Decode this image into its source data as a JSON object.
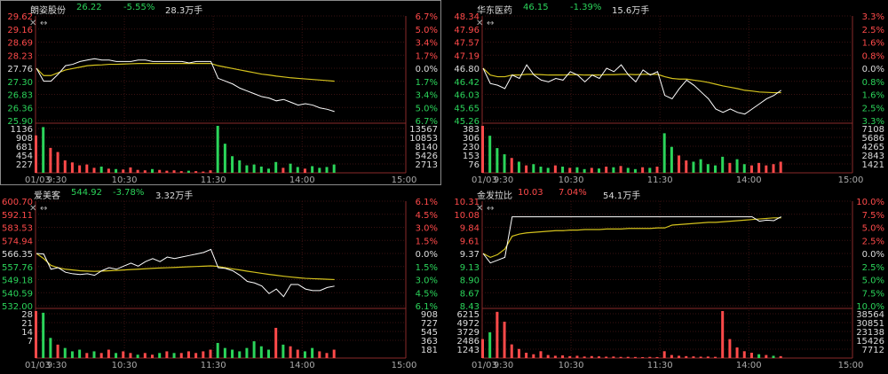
{
  "colors": {
    "up": "#ff4a4a",
    "down": "#2bd45a",
    "neutral": "#dddddd",
    "price_line": "#ffffff",
    "avg_line": "#d4c21d",
    "grid": "#3a1212",
    "axis_text": "#aaaaaa"
  },
  "time_axis": [
    "01/03",
    "9:30",
    "10:30",
    "11:30",
    "14:00",
    "15:00"
  ],
  "panels": [
    {
      "name": "朗姿股份",
      "price": "26.22",
      "change_pct": "-5.55%",
      "volume": "28.3万手",
      "price_ticks": [
        "29.62",
        "29.16",
        "28.69",
        "28.23",
        "27.76",
        "27.30",
        "26.83",
        "26.36",
        "25.90"
      ],
      "pct_ticks": [
        "6.7%",
        "5.0%",
        "3.4%",
        "1.7%",
        "0.0%",
        "1.7%",
        "3.4%",
        "5.0%",
        "6.7%"
      ],
      "vol_ticks": [
        "1136",
        "908",
        "681",
        "454",
        "227"
      ],
      "vol_ticks_right": [
        "13567",
        "10853",
        "8140",
        "5426",
        "2713"
      ],
      "controls": {
        "close": "✕",
        "expand": "↔"
      }
    },
    {
      "name": "华东医药",
      "price": "46.15",
      "change_pct": "-1.39%",
      "volume": "15.6万手",
      "price_ticks": [
        "48.34",
        "47.96",
        "47.57",
        "47.19",
        "46.80",
        "46.42",
        "46.03",
        "45.65",
        "45.26"
      ],
      "pct_ticks": [
        "3.3%",
        "2.5%",
        "1.6%",
        "0.8%",
        "0.0%",
        "0.8%",
        "1.6%",
        "2.5%",
        "3.3%"
      ],
      "vol_ticks": [
        "383",
        "306",
        "230",
        "153",
        "76"
      ],
      "vol_ticks_right": [
        "7108",
        "5686",
        "4265",
        "2843",
        "1421"
      ],
      "controls": {
        "close": "✕",
        "expand": "↔"
      }
    },
    {
      "name": "爱美客",
      "price": "544.92",
      "change_pct": "-3.78%",
      "volume": "3.32万手",
      "price_ticks": [
        "600.70",
        "592.11",
        "583.53",
        "574.94",
        "566.35",
        "557.76",
        "549.18",
        "540.59",
        "532.00"
      ],
      "pct_ticks": [
        "6.1%",
        "4.5%",
        "3.0%",
        "1.5%",
        "0.0%",
        "1.5%",
        "3.0%",
        "4.5%",
        "6.1%"
      ],
      "vol_ticks": [
        "28",
        "21",
        "14",
        "7"
      ],
      "vol_ticks_right": [
        "908",
        "727",
        "545",
        "363",
        "181"
      ],
      "controls": {
        "close": "✕",
        "expand": "↔"
      }
    },
    {
      "name": "金发拉比",
      "price": "10.03",
      "change_pct": "7.04%",
      "volume": "54.1万手",
      "price_ticks": [
        "10.31",
        "10.08",
        "9.84",
        "9.61",
        "9.37",
        "9.13",
        "8.90",
        "8.67",
        "8.43"
      ],
      "pct_ticks": [
        "10.0%",
        "7.5%",
        "5.0%",
        "2.5%",
        "0.0%",
        "2.5%",
        "5.0%",
        "7.5%",
        "10.0%"
      ],
      "vol_ticks": [
        "6215",
        "4972",
        "3729",
        "2486",
        "1243"
      ],
      "vol_ticks_right": [
        "38564",
        "30851",
        "23138",
        "15426",
        "7712"
      ],
      "controls": {
        "close": "✕",
        "expand": "↔"
      }
    }
  ],
  "chart_data": [
    {
      "type": "line",
      "title": "朗姿股份",
      "y_range": [
        25.9,
        29.62
      ],
      "prev_close": 27.76,
      "series": [
        {
          "name": "",
          "values": [
            27.76,
            27.3,
            27.3,
            27.55,
            27.85,
            27.9,
            28.0,
            28.05,
            28.1,
            28.05,
            28.05,
            28.0,
            28.0,
            28.0,
            28.05,
            28.05,
            28.0,
            28.0,
            28.0,
            28.0,
            28.0,
            27.95,
            28.0,
            28.0,
            28.0,
            27.4,
            27.3,
            27.2,
            27.05,
            26.95,
            26.85,
            26.75,
            26.7,
            26.6,
            26.65,
            26.55,
            26.45,
            26.5,
            26.45,
            26.35,
            26.3,
            26.22
          ]
        },
        {
          "name": "",
          "values": [
            27.76,
            27.5,
            27.5,
            27.6,
            27.7,
            27.75,
            27.8,
            27.85,
            27.87,
            27.88,
            27.9,
            27.9,
            27.91,
            27.92,
            27.93,
            27.93,
            27.93,
            27.93,
            27.93,
            27.93,
            27.93,
            27.93,
            27.93,
            27.93,
            27.93,
            27.85,
            27.8,
            27.75,
            27.7,
            27.65,
            27.6,
            27.55,
            27.52,
            27.48,
            27.45,
            27.42,
            27.4,
            27.38,
            27.36,
            27.34,
            27.32,
            27.3
          ]
        }
      ],
      "volume": [
        900,
        1100,
        600,
        500,
        300,
        250,
        180,
        200,
        120,
        150,
        100,
        90,
        80,
        130,
        70,
        60,
        90,
        70,
        50,
        60,
        40,
        50,
        40,
        30,
        60,
        1130,
        700,
        400,
        300,
        180,
        200,
        150,
        100,
        260,
        120,
        220,
        140,
        100,
        160,
        120,
        140,
        200
      ]
    },
    {
      "type": "line",
      "title": "华东医药",
      "y_range": [
        45.26,
        48.34
      ],
      "prev_close": 46.8,
      "series": [
        {
          "name": "",
          "values": [
            46.8,
            46.35,
            46.3,
            46.2,
            46.6,
            46.5,
            46.9,
            46.6,
            46.45,
            46.4,
            46.5,
            46.45,
            46.7,
            46.6,
            46.4,
            46.6,
            46.5,
            46.8,
            46.7,
            46.9,
            46.6,
            46.4,
            46.75,
            46.6,
            46.7,
            46.0,
            45.9,
            46.2,
            46.45,
            46.3,
            46.1,
            45.9,
            45.6,
            45.5,
            45.6,
            45.5,
            45.45,
            45.6,
            45.75,
            45.9,
            46.0,
            46.15
          ]
        },
        {
          "name": "",
          "values": [
            46.8,
            46.6,
            46.55,
            46.55,
            46.6,
            46.6,
            46.62,
            46.62,
            46.61,
            46.6,
            46.6,
            46.6,
            46.61,
            46.61,
            46.6,
            46.6,
            46.6,
            46.61,
            46.61,
            46.62,
            46.62,
            46.61,
            46.62,
            46.62,
            46.62,
            46.55,
            46.5,
            46.48,
            46.48,
            46.45,
            46.42,
            46.38,
            46.33,
            46.28,
            46.24,
            46.2,
            46.15,
            46.13,
            46.1,
            46.09,
            46.08,
            46.08
          ]
        }
      ],
      "volume": [
        380,
        300,
        200,
        150,
        120,
        90,
        60,
        70,
        50,
        40,
        60,
        50,
        40,
        45,
        30,
        40,
        35,
        50,
        45,
        55,
        40,
        30,
        45,
        40,
        50,
        320,
        210,
        140,
        100,
        90,
        110,
        70,
        60,
        130,
        80,
        110,
        70,
        60,
        80,
        60,
        70,
        90
      ]
    },
    {
      "type": "line",
      "title": "爱美客",
      "y_range": [
        532.0,
        600.7
      ],
      "prev_close": 566.35,
      "series": [
        {
          "name": "",
          "values": [
            566.35,
            566.0,
            556.0,
            557.0,
            554.0,
            553.0,
            552.5,
            553.0,
            552.0,
            555.0,
            557.0,
            556.0,
            558.0,
            560.0,
            558.0,
            561.0,
            563.0,
            561.0,
            564.0,
            563.0,
            564.0,
            565.0,
            566.0,
            567.0,
            569.0,
            557.0,
            556.5,
            555.0,
            552.0,
            548.0,
            547.0,
            545.0,
            540.0,
            543.0,
            538.0,
            546.0,
            546.0,
            543.0,
            542.0,
            542.0,
            544.0,
            544.92
          ]
        },
        {
          "name": "",
          "values": [
            566.35,
            563.0,
            558.5,
            557.0,
            556.0,
            555.5,
            555.0,
            554.8,
            554.6,
            554.8,
            555.0,
            555.2,
            555.5,
            555.8,
            556.0,
            556.3,
            556.6,
            556.8,
            557.0,
            557.2,
            557.4,
            557.6,
            557.8,
            558.0,
            558.2,
            557.8,
            557.0,
            556.2,
            555.5,
            554.7,
            554.0,
            553.3,
            552.6,
            552.0,
            551.4,
            550.9,
            550.4,
            550.0,
            549.8,
            549.6,
            549.4,
            549.2
          ]
        }
      ],
      "volume": [
        28,
        27,
        12,
        8,
        6,
        4,
        5,
        3,
        4,
        3,
        5,
        3,
        4,
        3,
        2,
        3,
        2,
        3,
        4,
        3,
        3,
        4,
        3,
        4,
        5,
        9,
        6,
        5,
        4,
        6,
        10,
        7,
        5,
        18,
        8,
        7,
        5,
        4,
        6,
        4,
        3,
        5
      ]
    },
    {
      "type": "line",
      "title": "金发拉比",
      "y_range": [
        8.43,
        10.31
      ],
      "prev_close": 9.37,
      "series": [
        {
          "name": "",
          "values": [
            9.37,
            9.2,
            9.25,
            9.3,
            10.03,
            10.03,
            10.03,
            10.03,
            10.03,
            10.03,
            10.03,
            10.03,
            10.03,
            10.03,
            10.03,
            10.03,
            10.03,
            10.03,
            10.03,
            10.03,
            10.03,
            10.03,
            10.03,
            10.03,
            10.03,
            10.03,
            10.03,
            10.03,
            10.03,
            10.03,
            10.03,
            10.03,
            10.03,
            10.03,
            10.03,
            10.03,
            10.03,
            10.03,
            9.95,
            9.97,
            9.96,
            10.03
          ]
        },
        {
          "name": "",
          "values": [
            9.37,
            9.3,
            9.35,
            9.45,
            9.68,
            9.72,
            9.74,
            9.75,
            9.76,
            9.77,
            9.78,
            9.78,
            9.79,
            9.79,
            9.8,
            9.8,
            9.8,
            9.81,
            9.81,
            9.81,
            9.82,
            9.82,
            9.82,
            9.82,
            9.83,
            9.83,
            9.88,
            9.89,
            9.9,
            9.91,
            9.92,
            9.93,
            9.93,
            9.94,
            9.95,
            9.96,
            9.97,
            9.98,
            9.99,
            10.0,
            10.01,
            10.01
          ]
        }
      ],
      "volume": [
        2500,
        3400,
        6100,
        4800,
        1800,
        1200,
        700,
        500,
        900,
        400,
        300,
        350,
        250,
        300,
        200,
        260,
        220,
        180,
        200,
        150,
        160,
        140,
        120,
        150,
        130,
        900,
        400,
        300,
        250,
        220,
        180,
        200,
        160,
        6200,
        2500,
        1400,
        900,
        700,
        500,
        400,
        300,
        250
      ]
    }
  ]
}
